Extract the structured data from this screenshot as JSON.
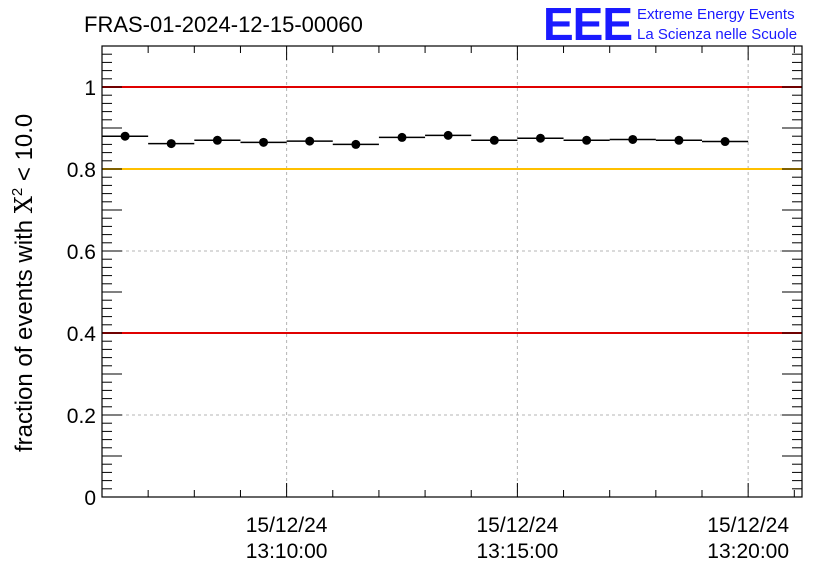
{
  "chart_data": {
    "type": "scatter",
    "title": "FRAS-01-2024-12-15-00060",
    "ylabel_prefix": "fraction of events with ",
    "ylabel_symbol": "X",
    "ylabel_sup": "2",
    "ylabel_suffix": " < 10.0",
    "xlabel": "",
    "ylim": [
      0,
      1.1
    ],
    "xlim": [
      "13:06:00",
      "13:21:10"
    ],
    "grid": true,
    "legend": "none",
    "x_ticks": [
      {
        "date": "15/12/24",
        "time": "13:10:00"
      },
      {
        "date": "15/12/24",
        "time": "13:15:00"
      },
      {
        "date": "15/12/24",
        "time": "13:20:00"
      }
    ],
    "y_ticks": [
      "0",
      "0.2",
      "0.4",
      "0.6",
      "0.8",
      "1"
    ],
    "reference_lines": [
      {
        "y": 1.0,
        "color": "#e00000"
      },
      {
        "y": 0.8,
        "color": "#ffc000"
      },
      {
        "y": 0.4,
        "color": "#e00000"
      }
    ],
    "points": [
      {
        "x": "13:06:30",
        "y": 0.88
      },
      {
        "x": "13:07:30",
        "y": 0.862
      },
      {
        "x": "13:08:30",
        "y": 0.87
      },
      {
        "x": "13:09:30",
        "y": 0.865
      },
      {
        "x": "13:10:30",
        "y": 0.868
      },
      {
        "x": "13:11:30",
        "y": 0.86
      },
      {
        "x": "13:12:30",
        "y": 0.877
      },
      {
        "x": "13:13:30",
        "y": 0.882
      },
      {
        "x": "13:14:30",
        "y": 0.87
      },
      {
        "x": "13:15:30",
        "y": 0.875
      },
      {
        "x": "13:16:30",
        "y": 0.87
      },
      {
        "x": "13:17:30",
        "y": 0.872
      },
      {
        "x": "13:18:30",
        "y": 0.87
      },
      {
        "x": "13:19:30",
        "y": 0.867
      }
    ],
    "bin_width_seconds": 60
  },
  "logo": {
    "text": "EEE",
    "line1": "Extreme Energy Events",
    "line2": "La Scienza nelle Scuole"
  }
}
